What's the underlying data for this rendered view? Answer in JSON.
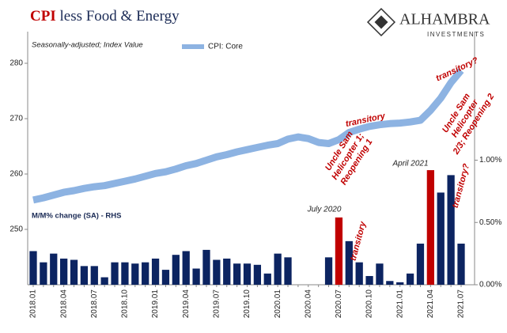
{
  "chart_data": {
    "type": "bar_line",
    "title": [
      "CPI",
      "less Food & Energy"
    ],
    "subtitle": "Seasonally-adjusted; Index Value",
    "y2_label": "M/M% change (SA) - RHS",
    "logo": [
      "ALHAMBRA",
      "INVESTMENTS"
    ],
    "categories": [
      "2018.01",
      null,
      null,
      "2018.04",
      null,
      null,
      "2018.07",
      null,
      null,
      "2018.10",
      null,
      null,
      "2019.01",
      null,
      null,
      "2019.04",
      null,
      null,
      "2019.07",
      null,
      null,
      "2019.10",
      null,
      null,
      "2020.01",
      null,
      null,
      "2020.04",
      null,
      null,
      "2020.07",
      null,
      null,
      "2020.10",
      null,
      null,
      "2021.01",
      null,
      null,
      "2021.04",
      null,
      null,
      "2021.07"
    ],
    "series": [
      {
        "name": "CPI: Core",
        "color": "#8db3e2",
        "values": [
          255.3,
          255.7,
          256.2,
          256.7,
          257.0,
          257.4,
          257.7,
          257.9,
          258.3,
          258.7,
          259.1,
          259.6,
          260.1,
          260.4,
          260.9,
          261.5,
          261.9,
          262.5,
          263.1,
          263.5,
          264.0,
          264.4,
          264.8,
          265.2,
          265.5,
          266.3,
          266.7,
          266.4,
          265.7,
          265.5,
          266.2,
          267.5,
          268.1,
          268.6,
          268.9,
          269.1,
          269.2,
          269.4,
          269.7,
          271.5,
          273.7,
          276.5,
          278.7
        ]
      },
      {
        "name": "M/M",
        "axis": "y2",
        "color": "#0c2461",
        "colors": [
          "#0c2461",
          "#0c2461",
          "#0c2461",
          "#0c2461",
          "#0c2461",
          "#0c2461",
          "#0c2461",
          "#0c2461",
          "#0c2461",
          "#0c2461",
          "#0c2461",
          "#0c2461",
          "#0c2461",
          "#0c2461",
          "#0c2461",
          "#0c2461",
          "#0c2461",
          "#0c2461",
          "#0c2461",
          "#0c2461",
          "#0c2461",
          "#0c2461",
          "#0c2461",
          "#0c2461",
          "#0c2461",
          "#0c2461",
          "#0c2461",
          "#0c2461",
          "#0c2461",
          "#0c2461",
          "#c00000",
          "#0c2461",
          "#0c2461",
          "#0c2461",
          "#0c2461",
          "#0c2461",
          "#0c2461",
          "#0c2461",
          "#0c2461",
          "#c00000",
          "#0c2461",
          "#0c2461",
          "#0c2461"
        ],
        "values": [
          0.27,
          0.18,
          0.25,
          0.21,
          0.2,
          0.15,
          0.15,
          0.06,
          0.18,
          0.18,
          0.17,
          0.18,
          0.21,
          0.12,
          0.24,
          0.27,
          0.13,
          0.28,
          0.2,
          0.21,
          0.17,
          0.17,
          0.16,
          0.09,
          0.25,
          0.22,
          0,
          0,
          0,
          0.22,
          0.54,
          0.35,
          0.18,
          0.07,
          0.17,
          0.03,
          0.02,
          0.09,
          0.33,
          0.92,
          0.74,
          0.88,
          0.33
        ]
      }
    ],
    "ylim": [
      240,
      285
    ],
    "yticks": [
      250,
      260,
      270,
      280
    ],
    "y2lim": [
      0,
      2.0
    ],
    "y2ticks": [
      {
        "value": 0,
        "label": "0.00%"
      },
      {
        "value": 0.5,
        "label": "0.50%"
      },
      {
        "value": 1.0,
        "label": "1.00%"
      }
    ],
    "annotations": [
      "transitory?",
      "transitory",
      "Uncle Sam Helicopter 1; Reopening 1",
      "Uncle Sam Helicopter 2/3; Reopening 2",
      "July 2020",
      "transitory",
      "April 2021",
      "transitory?"
    ]
  }
}
